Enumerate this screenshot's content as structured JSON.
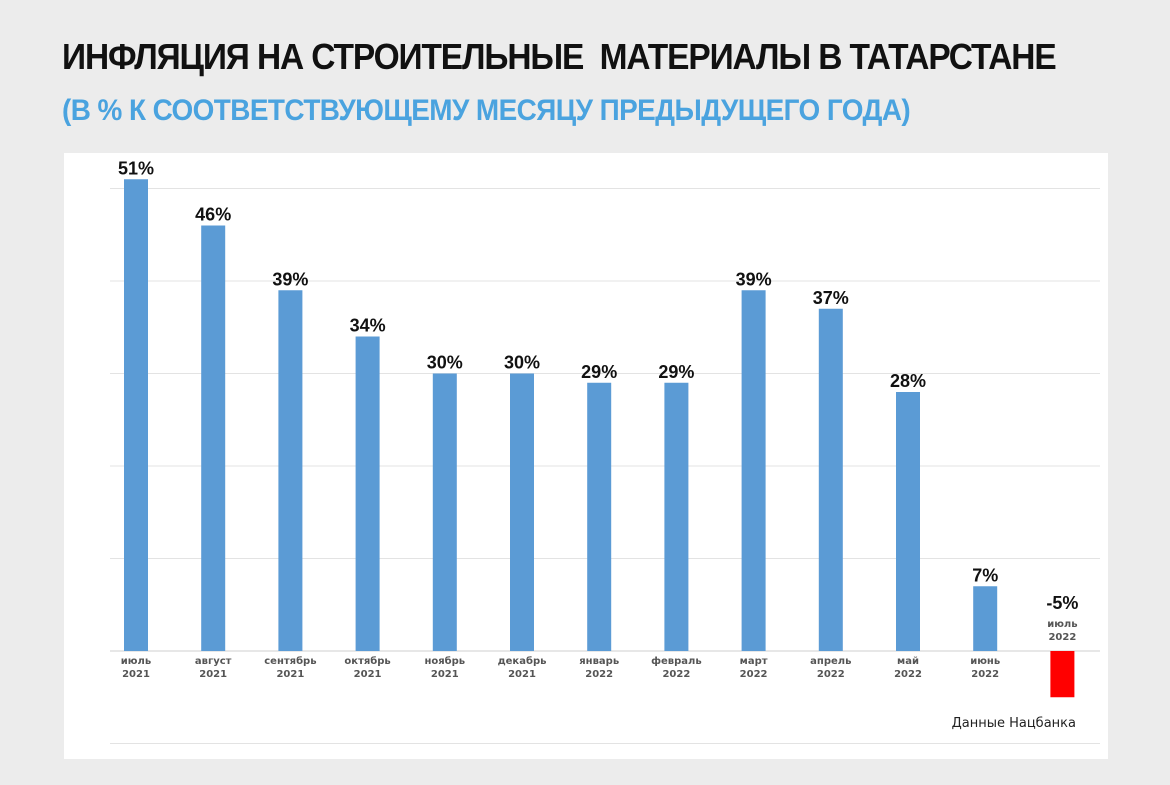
{
  "colors": {
    "positive_bar": "#5b9bd5",
    "negative_bar": "#ff0000",
    "subtitle": "#4aa3df",
    "grid": "#e3e3e3",
    "axis": "#cfcfcf"
  },
  "header": {
    "title": "ИНФЛЯЦИЯ НА СТРОИТЕЛЬНЫЕ  МАТЕРИАЛЫ В ТАТАРСТАНЕ",
    "subtitle": "(В % К СООТВЕТСТВУЮЩЕМУ МЕСЯЦУ ПРЕДЫДУЩЕГО ГОДА)"
  },
  "chart_data": {
    "type": "bar",
    "title": "ИНФЛЯЦИЯ НА СТРОИТЕЛЬНЫЕ  МАТЕРИАЛЫ В ТАТАРСТАНЕ",
    "subtitle": "(В % К СООТВЕТСТВУЮЩЕМУ МЕСЯЦУ ПРЕДЫДУЩЕГО ГОДА)",
    "xlabel": "",
    "ylabel": "",
    "ylim": [
      -10,
      50
    ],
    "grid": true,
    "legend": "none",
    "categories": [
      {
        "month": "июль",
        "year": "2021"
      },
      {
        "month": "август",
        "year": "2021"
      },
      {
        "month": "сентябрь",
        "year": "2021"
      },
      {
        "month": "октябрь",
        "year": "2021"
      },
      {
        "month": "ноябрь",
        "year": "2021"
      },
      {
        "month": "декабрь",
        "year": "2021"
      },
      {
        "month": "январь",
        "year": "2022"
      },
      {
        "month": "февраль",
        "year": "2022"
      },
      {
        "month": "март",
        "year": "2022"
      },
      {
        "month": "апрель",
        "year": "2022"
      },
      {
        "month": "май",
        "year": "2022"
      },
      {
        "month": "июнь",
        "year": "2022"
      },
      {
        "month": "июль",
        "year": "2022"
      }
    ],
    "values": [
      51,
      46,
      39,
      34,
      30,
      30,
      29,
      29,
      39,
      37,
      28,
      7,
      -5
    ],
    "value_labels": [
      "51%",
      "46%",
      "39%",
      "34%",
      "30%",
      "30%",
      "29%",
      "29%",
      "39%",
      "37%",
      "28%",
      "7%",
      "-5%"
    ],
    "source": "Данные Нацбанка"
  }
}
